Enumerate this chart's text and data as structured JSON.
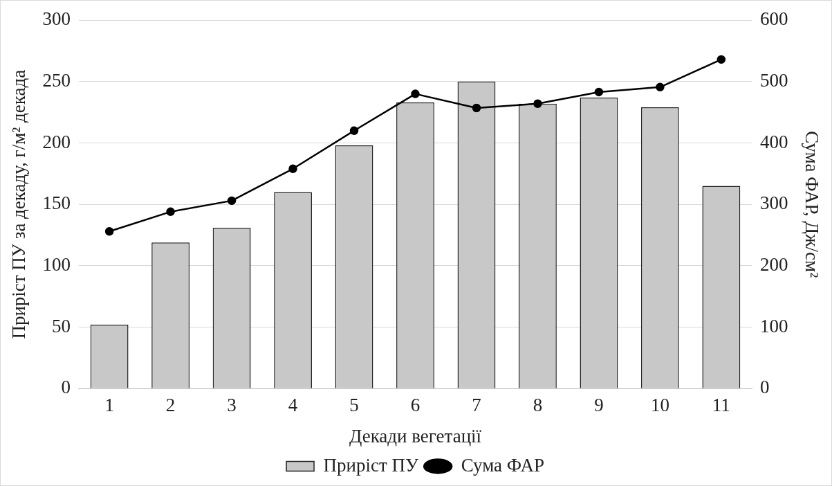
{
  "chart_data": {
    "type": "bar",
    "xlabel": "Декади вегетації",
    "ylabel": "Приріст ПУ за декаду, г/м² декада",
    "y2label": "Сума ФАР, Дж/см²",
    "categories": [
      "1",
      "2",
      "3",
      "4",
      "5",
      "6",
      "7",
      "8",
      "9",
      "10",
      "11"
    ],
    "series": [
      {
        "name": "Приріст ПУ",
        "color": "#c8c8c8",
        "values": [
          52,
          119,
          131,
          160,
          198,
          233,
          250,
          232,
          237,
          229,
          165
        ]
      },
      {
        "name": "Сума ФАР",
        "type": "line",
        "axis": "y2",
        "color": "#000000",
        "values": [
          256,
          288,
          306,
          358,
          420,
          480,
          457,
          464,
          483,
          491,
          536
        ]
      }
    ],
    "ylim": [
      0,
      300
    ],
    "yticks": [
      0,
      50,
      100,
      150,
      200,
      250,
      300
    ],
    "y2lim": [
      0,
      600
    ],
    "y2ticks": [
      0,
      100,
      200,
      300,
      400,
      500,
      600
    ],
    "grid": "y",
    "legend": "bottom",
    "marker": "circle",
    "line_style": "solid"
  }
}
